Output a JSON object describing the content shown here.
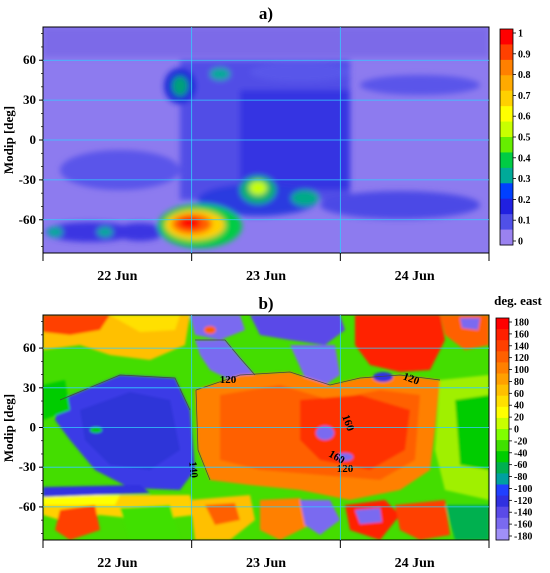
{
  "chart_data": [
    {
      "type": "heatmap",
      "panel_label": "a)",
      "ylabel": "Modip [deg]",
      "x_ticks": [
        "22 Jun",
        "23 Jun",
        "24 Jun"
      ],
      "y_ticks": [
        60,
        30,
        0,
        -30,
        -60
      ],
      "ylim": [
        -85,
        85
      ],
      "x_days": [
        "22 Jun",
        "23 Jun",
        "24 Jun"
      ],
      "colorbar": {
        "title": "",
        "min": 0,
        "max": 1,
        "ticks": [
          "1",
          "0.9",
          "0.8",
          "0.7",
          "0.6",
          "0.5",
          "0.4",
          "0.3",
          "0.2",
          "0.1",
          "0"
        ],
        "colors": [
          "#ff0000",
          "#ff4000",
          "#ff8000",
          "#ffaa00",
          "#ffd000",
          "#ffff00",
          "#c8ff00",
          "#66ee00",
          "#00cc44",
          "#00aa99",
          "#0040ff",
          "#2020e0",
          "#5050e8",
          "#9a82f0"
        ]
      },
      "background_level": "low (~0.05-0.1)",
      "features": [
        {
          "description": "peak near -65 deg, late 22 Jun",
          "x_day": 1.55,
          "modip": -66,
          "value": 1.0
        },
        {
          "description": "secondary peak near -40 deg, early 23 Jun",
          "x_day": 1.77,
          "modip": -40,
          "value": 0.55
        },
        {
          "description": "moderate enhancement near 40 deg, 22 Jun",
          "x_day": 1.45,
          "modip": 42,
          "value": 0.35
        }
      ]
    },
    {
      "type": "heatmap",
      "panel_label": "b)",
      "ylabel": "Modip [deg]",
      "x_ticks": [
        "22 Jun",
        "23 Jun",
        "24 Jun"
      ],
      "y_ticks": [
        60,
        30,
        0,
        -30,
        -60
      ],
      "ylim": [
        -85,
        85
      ],
      "colorbar": {
        "title": "deg. east",
        "min": -180,
        "max": 180,
        "ticks": [
          "180",
          "160",
          "140",
          "120",
          "100",
          "80",
          "60",
          "40",
          "20",
          "0",
          "-20",
          "-40",
          "-60",
          "-80",
          "-100",
          "-120",
          "-140",
          "-160",
          "-180"
        ],
        "colors": [
          "#ff0000",
          "#ff2000",
          "#ff4000",
          "#ff6000",
          "#ff8000",
          "#ffa000",
          "#ffc000",
          "#ffe000",
          "#ffff00",
          "#c8ff00",
          "#80ff00",
          "#40e000",
          "#00cc00",
          "#00b050",
          "#00a0a0",
          "#2040ff",
          "#3030e0",
          "#5a4ae8",
          "#7a6af0",
          "#a090f8"
        ]
      },
      "contour_labels": [
        "120",
        "120",
        "160",
        "140",
        "160",
        "120"
      ]
    }
  ]
}
